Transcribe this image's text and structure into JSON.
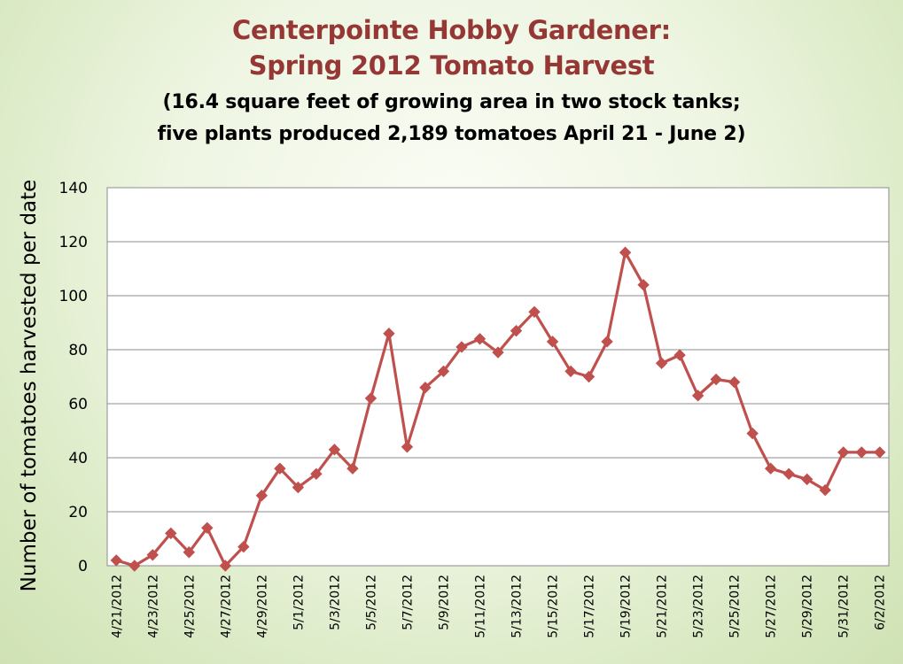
{
  "header": {
    "title_line1": "Centerpointe Hobby Gardener:",
    "title_line2": "Spring 2012 Tomato Harvest",
    "subtitle_line1": "(16.4 square feet of growing area in two stock tanks;",
    "subtitle_line2": "five plants produced 2,189 tomatoes April 21 - June 2)"
  },
  "colors": {
    "title": "#953735",
    "series": "#c0504d",
    "grid": "#8c8c8c",
    "plot_bg": "#ffffff",
    "page_bg": "#d9e9c2"
  },
  "chart_data": {
    "type": "line",
    "title": "Centerpointe Hobby Gardener: Spring 2012 Tomato Harvest",
    "subtitle": "(16.4 square feet of growing area in two stock tanks; five plants produced 2,189 tomatoes April 21 - June 2)",
    "xlabel": "",
    "ylabel": "Number of tomatoes harvested per date",
    "ylim": [
      0,
      140
    ],
    "yticks": [
      0,
      20,
      40,
      60,
      80,
      100,
      120,
      140
    ],
    "grid": "horizontal",
    "legend": "none",
    "marker": "diamond",
    "x": [
      "4/21/2012",
      "4/22/2012",
      "4/23/2012",
      "4/24/2012",
      "4/25/2012",
      "4/26/2012",
      "4/27/2012",
      "4/28/2012",
      "4/29/2012",
      "4/30/2012",
      "5/1/2012",
      "5/2/2012",
      "5/3/2012",
      "5/4/2012",
      "5/5/2012",
      "5/6/2012",
      "5/7/2012",
      "5/8/2012",
      "5/9/2012",
      "5/10/2012",
      "5/11/2012",
      "5/12/2012",
      "5/13/2012",
      "5/14/2012",
      "5/15/2012",
      "5/16/2012",
      "5/17/2012",
      "5/18/2012",
      "5/19/2012",
      "5/20/2012",
      "5/21/2012",
      "5/22/2012",
      "5/23/2012",
      "5/24/2012",
      "5/25/2012",
      "5/26/2012",
      "5/27/2012",
      "5/28/2012",
      "5/29/2012",
      "5/30/2012",
      "5/31/2012",
      "6/1/2012",
      "6/2/2012"
    ],
    "xtick_labels": [
      "4/21/2012",
      "4/23/2012",
      "4/25/2012",
      "4/27/2012",
      "4/29/2012",
      "5/1/2012",
      "5/3/2012",
      "5/5/2012",
      "5/7/2012",
      "5/9/2012",
      "5/11/2012",
      "5/13/2012",
      "5/15/2012",
      "5/17/2012",
      "5/19/2012",
      "5/21/2012",
      "5/23/2012",
      "5/25/2012",
      "5/27/2012",
      "5/29/2012",
      "5/31/2012",
      "6/2/2012"
    ],
    "series": [
      {
        "values": [
          2,
          0,
          4,
          12,
          5,
          14,
          0,
          7,
          26,
          36,
          29,
          34,
          43,
          36,
          62,
          86,
          44,
          66,
          72,
          81,
          84,
          79,
          87,
          94,
          83,
          72,
          70,
          83,
          116,
          104,
          75,
          78,
          63,
          69,
          68,
          49,
          36,
          34,
          32,
          28,
          42,
          42,
          42
        ]
      }
    ]
  }
}
